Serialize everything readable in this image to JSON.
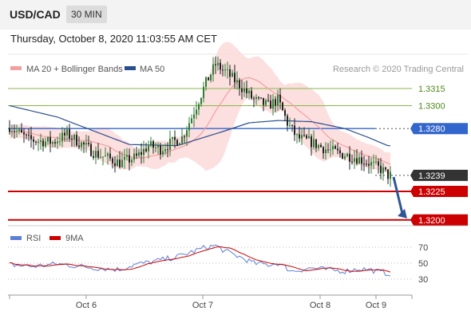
{
  "header": {
    "symbol": "USD/CAD",
    "timeframe": "30 MIN"
  },
  "datetime": "Thursday, October 8, 2020 11:03:55 AM CET",
  "legend": {
    "bollinger": "MA 20 + Bollinger Bands",
    "ma50": "MA 50",
    "credit": "Research © 2020 Trading Central",
    "rsi": "RSI",
    "rsi_ma": "9MA"
  },
  "colors": {
    "up": "#2e7d32",
    "down": "#222222",
    "band": "#fcd9d9",
    "ma20": "#f2a0a0",
    "ma50": "#2a4f8f",
    "support": "#cc0000",
    "resistance": "#8ab84a",
    "pivot": "#3366cc",
    "last": "#333333",
    "rsi": "#5b7fd6",
    "rsi_ma": "#cc0000"
  },
  "levels": [
    {
      "value": 1.3315,
      "label": "1.3315",
      "kind": "resistance"
    },
    {
      "value": 1.33,
      "label": "1.3300",
      "kind": "resistance"
    },
    {
      "value": 1.328,
      "label": "1.3280",
      "kind": "pivot"
    },
    {
      "value": 1.3239,
      "label": "1.3239",
      "kind": "last"
    },
    {
      "value": 1.3225,
      "label": "1.3225",
      "kind": "support"
    },
    {
      "value": 1.32,
      "label": "1.3200",
      "kind": "support"
    }
  ],
  "x_labels": [
    "Oct 6",
    "Oct 7",
    "Oct 8",
    "Oct 9"
  ],
  "rsi_ticks": [
    "70",
    "50",
    "30"
  ],
  "chart_data": {
    "type": "candlestick",
    "instrument": "USD/CAD",
    "interval": "30 MIN",
    "y_range": [
      1.3195,
      1.3345
    ],
    "rsi_range": [
      20,
      80
    ],
    "price_waypoints": [
      [
        0,
        1.3282
      ],
      [
        8,
        1.327
      ],
      [
        18,
        1.3268
      ],
      [
        24,
        1.3275
      ],
      [
        36,
        1.3258
      ],
      [
        46,
        1.325
      ],
      [
        53,
        1.3255
      ],
      [
        58,
        1.3265
      ],
      [
        63,
        1.3262
      ],
      [
        68,
        1.3268
      ],
      [
        72,
        1.3272
      ],
      [
        76,
        1.329
      ],
      [
        82,
        1.332
      ],
      [
        86,
        1.3336
      ],
      [
        90,
        1.333
      ],
      [
        96,
        1.3318
      ],
      [
        102,
        1.3305
      ],
      [
        108,
        1.33
      ],
      [
        112,
        1.3305
      ],
      [
        116,
        1.3285
      ],
      [
        120,
        1.3272
      ],
      [
        126,
        1.3268
      ],
      [
        132,
        1.3262
      ],
      [
        138,
        1.3258
      ],
      [
        144,
        1.3255
      ],
      [
        150,
        1.325
      ],
      [
        156,
        1.3243
      ],
      [
        158,
        1.3239
      ]
    ],
    "ma50_waypoints": [
      [
        0,
        1.33
      ],
      [
        20,
        1.329
      ],
      [
        50,
        1.3266
      ],
      [
        70,
        1.3265
      ],
      [
        90,
        1.3278
      ],
      [
        100,
        1.3285
      ],
      [
        112,
        1.3287
      ],
      [
        126,
        1.3286
      ],
      [
        140,
        1.328
      ],
      [
        150,
        1.3272
      ],
      [
        158,
        1.3265
      ]
    ],
    "rsi_waypoints": [
      [
        0,
        48
      ],
      [
        10,
        46
      ],
      [
        20,
        49
      ],
      [
        36,
        44
      ],
      [
        46,
        42
      ],
      [
        52,
        48
      ],
      [
        60,
        52
      ],
      [
        70,
        58
      ],
      [
        76,
        64
      ],
      [
        82,
        70
      ],
      [
        86,
        72
      ],
      [
        90,
        65
      ],
      [
        96,
        58
      ],
      [
        102,
        50
      ],
      [
        108,
        48
      ],
      [
        112,
        50
      ],
      [
        118,
        40
      ],
      [
        126,
        44
      ],
      [
        132,
        42
      ],
      [
        140,
        40
      ],
      [
        146,
        43
      ],
      [
        150,
        42
      ],
      [
        156,
        38
      ],
      [
        158,
        37
      ]
    ],
    "forecast": {
      "from": 1.3239,
      "to": 1.32
    }
  }
}
